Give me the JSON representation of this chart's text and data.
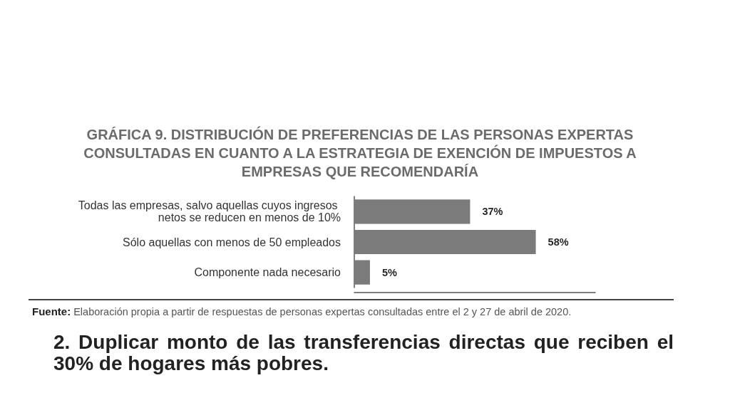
{
  "chart_data": {
    "type": "bar",
    "orientation": "horizontal",
    "title": "GRÁFICA 9. DISTRIBUCIÓN DE PREFERENCIAS DE LAS PERSONAS EXPERTAS CONSULTADAS EN CUANTO A LA ESTRATEGIA DE EXENCIÓN DE IMPUESTOS A EMPRESAS QUE RECOMENDARÍA",
    "categories": [
      "Todas las empresas, salvo aquellas cuyos ingresos netos se reducen en menos de 10%",
      "Sólo aquellas con menos de 50 empleados",
      "Componente nada necesario"
    ],
    "values": [
      37,
      58,
      5
    ],
    "value_labels": [
      "37%",
      "58%",
      "5%"
    ],
    "color": "#7b7b7b",
    "xlim": [
      0,
      77
    ],
    "tick_labels": "y",
    "annotations": [
      "Fuente: Elaboración propia a partir de respuestas de personas expertas consultadas entre el 2 y 27 de abril de 2020.",
      "2. Duplicar monto de las transferencias directas que reciben el 30% de hogares más pobres."
    ]
  }
}
